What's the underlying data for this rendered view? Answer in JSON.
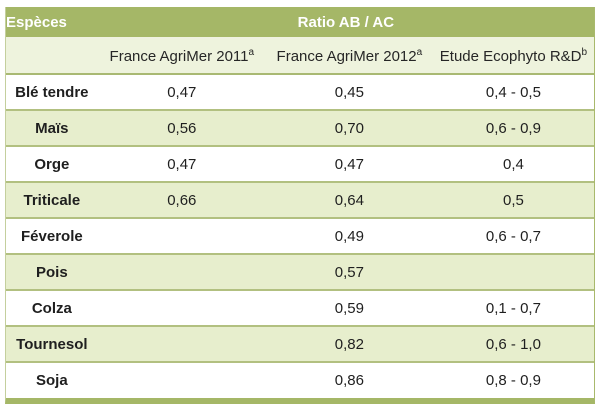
{
  "table": {
    "header": {
      "species_label": "Espèces",
      "ratio_label": "Ratio AB / AC"
    },
    "subheader": {
      "col1": {
        "label": "France AgriMer 2011",
        "sup": "a"
      },
      "col2": {
        "label": "France AgriMer 2012",
        "sup": "a"
      },
      "col3": {
        "label": "Etude Ecophyto R&D",
        "sup": "b"
      }
    },
    "rows": [
      {
        "species": "Blé tendre",
        "agrimer2011": "0,47",
        "agrimer2012": "0,45",
        "ecophyto": "0,4 - 0,5"
      },
      {
        "species": "Maïs",
        "agrimer2011": "0,56",
        "agrimer2012": "0,70",
        "ecophyto": "0,6 - 0,9"
      },
      {
        "species": "Orge",
        "agrimer2011": "0,47",
        "agrimer2012": "0,47",
        "ecophyto": "0,4"
      },
      {
        "species": "Triticale",
        "agrimer2011": "0,66",
        "agrimer2012": "0,64",
        "ecophyto": "0,5"
      },
      {
        "species": "Féverole",
        "agrimer2011": "",
        "agrimer2012": "0,49",
        "ecophyto": "0,6 - 0,7"
      },
      {
        "species": "Pois",
        "agrimer2011": "",
        "agrimer2012": "0,57",
        "ecophyto": ""
      },
      {
        "species": "Colza",
        "agrimer2011": "",
        "agrimer2012": "0,59",
        "ecophyto": "0,1 - 0,7"
      },
      {
        "species": "Tournesol",
        "agrimer2011": "",
        "agrimer2012": "0,82",
        "ecophyto": "0,6 - 1,0"
      },
      {
        "species": "Soja",
        "agrimer2011": "",
        "agrimer2012": "0,86",
        "ecophyto": "0,8 - 0,9"
      }
    ],
    "colors": {
      "header_bg": "#a5b767",
      "header_text": "#ffffff",
      "subheader_bg": "#eef3dd",
      "row_stripe_bg": "#e7eecd",
      "row_plain_bg": "#ffffff",
      "border": "#a5b767",
      "body_text": "#1f1f1f"
    }
  }
}
